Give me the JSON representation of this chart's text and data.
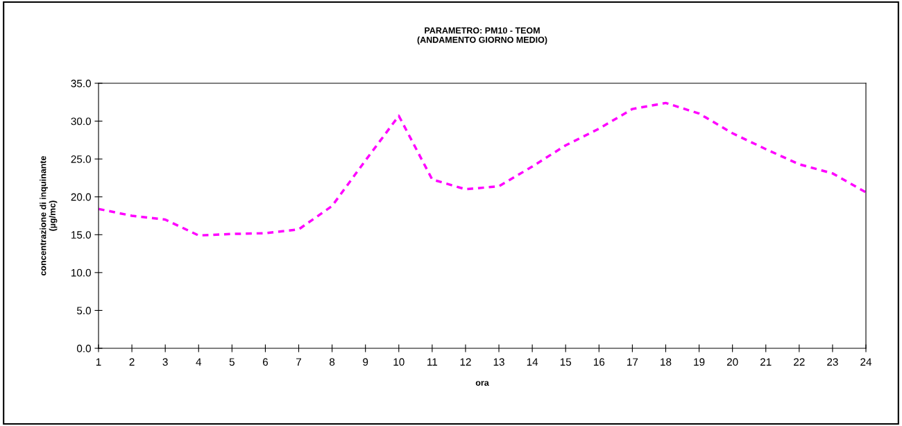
{
  "chart_data": {
    "type": "line",
    "title": "PARAMETRO: PM10 - TEOM\n(ANDAMENTO GIORNO MEDIO)",
    "xlabel": "ora",
    "ylabel": "concentrazione di inquinante\n(µg/mc)",
    "categories": [
      "1",
      "2",
      "3",
      "4",
      "5",
      "6",
      "7",
      "8",
      "9",
      "10",
      "11",
      "12",
      "13",
      "14",
      "15",
      "16",
      "17",
      "18",
      "19",
      "20",
      "21",
      "22",
      "23",
      "24"
    ],
    "series": [
      {
        "color": "#ff00ff",
        "values": [
          18.4,
          17.5,
          17.0,
          14.9,
          15.1,
          15.2,
          15.7,
          18.8,
          24.8,
          30.7,
          22.3,
          21.0,
          21.4,
          24.0,
          26.8,
          29.0,
          31.6,
          32.4,
          31.0,
          28.4,
          26.3,
          24.3,
          23.1,
          20.6
        ]
      }
    ],
    "ylim": [
      0,
      35
    ],
    "yticks": [
      {
        "value": 0,
        "label": "0.0"
      },
      {
        "value": 5,
        "label": "5.0"
      },
      {
        "value": 10,
        "label": "10.0"
      },
      {
        "value": 15,
        "label": "15.0"
      },
      {
        "value": 20,
        "label": "20.0"
      },
      {
        "value": 25,
        "label": "25.0"
      },
      {
        "value": 30,
        "label": "30.0"
      },
      {
        "value": 35,
        "label": "35.0"
      }
    ],
    "grid": false,
    "legend": false,
    "marker": "none",
    "line_style": "dashed"
  }
}
